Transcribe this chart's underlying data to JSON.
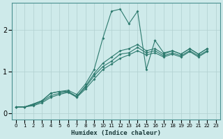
{
  "xlabel": "Humidex (Indice chaleur)",
  "bg_color": "#ceeaea",
  "line_color": "#2d7a6e",
  "grid_color": "#b0d0d0",
  "xlim": [
    -0.5,
    23.5
  ],
  "ylim": [
    -0.15,
    2.65
  ],
  "xticks": [
    0,
    1,
    2,
    3,
    4,
    5,
    6,
    7,
    8,
    9,
    10,
    11,
    12,
    13,
    14,
    15,
    16,
    17,
    18,
    19,
    20,
    21,
    22,
    23
  ],
  "yticks": [
    0,
    1,
    2
  ],
  "lines_x": [
    0,
    1,
    2,
    3,
    4,
    5,
    6,
    7,
    8,
    9,
    10,
    11,
    12,
    13,
    14,
    15,
    16,
    17,
    18,
    19,
    20,
    21,
    22
  ],
  "line1_y": [
    0.15,
    0.15,
    0.22,
    0.3,
    0.48,
    0.52,
    0.55,
    0.45,
    0.7,
    1.05,
    1.8,
    2.45,
    2.5,
    2.15,
    2.45,
    1.05,
    1.75,
    1.45,
    1.5,
    1.42,
    1.55,
    1.42,
    1.55
  ],
  "line2_y": [
    0.15,
    0.15,
    0.22,
    0.3,
    0.48,
    0.52,
    0.52,
    0.4,
    0.65,
    0.95,
    1.2,
    1.35,
    1.5,
    1.55,
    1.65,
    1.5,
    1.55,
    1.42,
    1.5,
    1.42,
    1.55,
    1.42,
    1.55
  ],
  "line3_y": [
    0.15,
    0.15,
    0.2,
    0.28,
    0.42,
    0.48,
    0.52,
    0.4,
    0.62,
    0.9,
    1.12,
    1.25,
    1.42,
    1.45,
    1.58,
    1.45,
    1.5,
    1.38,
    1.45,
    1.38,
    1.5,
    1.38,
    1.5
  ],
  "line4_y": [
    0.15,
    0.15,
    0.18,
    0.25,
    0.38,
    0.45,
    0.5,
    0.38,
    0.58,
    0.82,
    1.05,
    1.18,
    1.32,
    1.4,
    1.5,
    1.4,
    1.45,
    1.35,
    1.42,
    1.35,
    1.48,
    1.35,
    1.48
  ]
}
